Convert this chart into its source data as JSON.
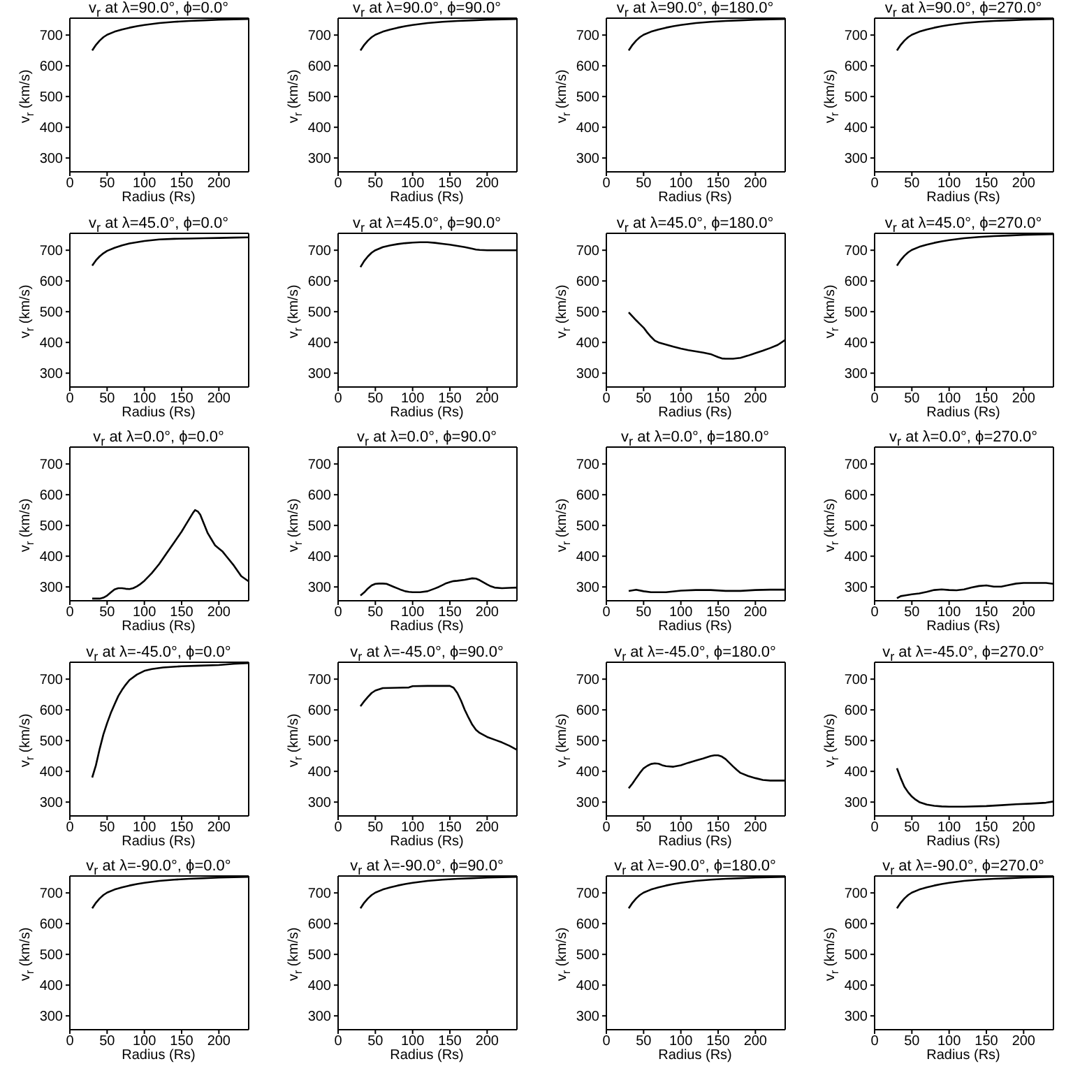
{
  "chart_data": [
    {
      "type": "line",
      "title": "v$_{r}$ at λ=90.0°, ϕ=0.0°",
      "xlabel": "Radius (Rs)",
      "ylabel": "v$_{r}$ (km/s)",
      "x": [
        30,
        35,
        40,
        45,
        50,
        60,
        70,
        80,
        90,
        100,
        120,
        140,
        160,
        180,
        200,
        220,
        240
      ],
      "series": [
        {
          "color": "#000000",
          "values": [
            650,
            668,
            682,
            693,
            701,
            711,
            718,
            724,
            729,
            733,
            739,
            743,
            746,
            748,
            750,
            751,
            752
          ]
        }
      ],
      "xlim": [
        0,
        240
      ],
      "ylim": [
        255,
        755
      ],
      "xticks": [
        0,
        50,
        100,
        150,
        200
      ],
      "yticks": [
        300,
        400,
        500,
        600,
        700
      ]
    },
    {
      "type": "line",
      "title": "v$_{r}$ at λ=90.0°, ϕ=90.0°",
      "xlabel": "Radius (Rs)",
      "ylabel": "v$_{r}$ (km/s)",
      "x": [
        30,
        35,
        40,
        45,
        50,
        60,
        70,
        80,
        90,
        100,
        120,
        140,
        160,
        180,
        200,
        220,
        240
      ],
      "series": [
        {
          "color": "#000000",
          "values": [
            650,
            668,
            682,
            693,
            701,
            711,
            718,
            724,
            729,
            733,
            739,
            743,
            746,
            748,
            750,
            751,
            752
          ]
        }
      ],
      "xlim": [
        0,
        240
      ],
      "ylim": [
        255,
        755
      ],
      "xticks": [
        0,
        50,
        100,
        150,
        200
      ],
      "yticks": [
        300,
        400,
        500,
        600,
        700
      ]
    },
    {
      "type": "line",
      "title": "v$_{r}$ at λ=90.0°, ϕ=180.0°",
      "xlabel": "Radius (Rs)",
      "ylabel": "v$_{r}$ (km/s)",
      "x": [
        30,
        35,
        40,
        45,
        50,
        60,
        70,
        80,
        90,
        100,
        120,
        140,
        160,
        180,
        200,
        220,
        240
      ],
      "series": [
        {
          "color": "#000000",
          "values": [
            650,
            668,
            682,
            693,
            701,
            711,
            718,
            724,
            729,
            733,
            739,
            743,
            746,
            748,
            750,
            751,
            752
          ]
        }
      ],
      "xlim": [
        0,
        240
      ],
      "ylim": [
        255,
        755
      ],
      "xticks": [
        0,
        50,
        100,
        150,
        200
      ],
      "yticks": [
        300,
        400,
        500,
        600,
        700
      ]
    },
    {
      "type": "line",
      "title": "v$_{r}$ at λ=90.0°, ϕ=270.0°",
      "xlabel": "Radius (Rs)",
      "ylabel": "v$_{r}$ (km/s)",
      "x": [
        30,
        35,
        40,
        45,
        50,
        60,
        70,
        80,
        90,
        100,
        120,
        140,
        160,
        180,
        200,
        220,
        240
      ],
      "series": [
        {
          "color": "#000000",
          "values": [
            650,
            668,
            682,
            693,
            701,
            711,
            718,
            724,
            729,
            733,
            739,
            743,
            746,
            748,
            750,
            751,
            752
          ]
        }
      ],
      "xlim": [
        0,
        240
      ],
      "ylim": [
        255,
        755
      ],
      "xticks": [
        0,
        50,
        100,
        150,
        200
      ],
      "yticks": [
        300,
        400,
        500,
        600,
        700
      ]
    },
    {
      "type": "line",
      "title": "v$_{r}$ at λ=45.0°, ϕ=0.0°",
      "xlabel": "Radius (Rs)",
      "ylabel": "v$_{r}$ (km/s)",
      "x": [
        30,
        35,
        40,
        45,
        50,
        60,
        70,
        80,
        90,
        100,
        120,
        140,
        160,
        180,
        200,
        220,
        240
      ],
      "series": [
        {
          "color": "#000000",
          "values": [
            650,
            667,
            680,
            690,
            698,
            708,
            716,
            722,
            726,
            730,
            735,
            737,
            738,
            739,
            740,
            741,
            742
          ]
        }
      ],
      "xlim": [
        0,
        240
      ],
      "ylim": [
        255,
        755
      ],
      "xticks": [
        0,
        50,
        100,
        150,
        200
      ],
      "yticks": [
        300,
        400,
        500,
        600,
        700
      ]
    },
    {
      "type": "line",
      "title": "v$_{r}$ at λ=45.0°, ϕ=90.0°",
      "xlabel": "Radius (Rs)",
      "ylabel": "v$_{r}$ (km/s)",
      "x": [
        30,
        35,
        40,
        45,
        50,
        60,
        70,
        80,
        90,
        100,
        110,
        120,
        130,
        140,
        150,
        160,
        170,
        180,
        185,
        190,
        200,
        220,
        240
      ],
      "series": [
        {
          "color": "#000000",
          "values": [
            645,
            665,
            680,
            692,
            700,
            710,
            716,
            720,
            723,
            725,
            726,
            726,
            724,
            721,
            718,
            714,
            710,
            705,
            702,
            701,
            700,
            700,
            700
          ]
        }
      ],
      "xlim": [
        0,
        240
      ],
      "ylim": [
        255,
        755
      ],
      "xticks": [
        0,
        50,
        100,
        150,
        200
      ],
      "yticks": [
        300,
        400,
        500,
        600,
        700
      ]
    },
    {
      "type": "line",
      "title": "v$_{r}$ at λ=45.0°, ϕ=180.0°",
      "xlabel": "Radius (Rs)",
      "ylabel": "v$_{r}$ (km/s)",
      "x": [
        30,
        35,
        40,
        45,
        50,
        55,
        60,
        65,
        70,
        80,
        90,
        100,
        110,
        120,
        130,
        140,
        150,
        155,
        160,
        170,
        180,
        190,
        200,
        210,
        220,
        230,
        240
      ],
      "series": [
        {
          "color": "#000000",
          "values": [
            498,
            485,
            472,
            460,
            448,
            432,
            418,
            406,
            400,
            393,
            386,
            380,
            375,
            371,
            367,
            362,
            352,
            348,
            347,
            347,
            350,
            357,
            365,
            373,
            382,
            392,
            408
          ]
        }
      ],
      "xlim": [
        0,
        240
      ],
      "ylim": [
        255,
        755
      ],
      "xticks": [
        0,
        50,
        100,
        150,
        200
      ],
      "yticks": [
        300,
        400,
        500,
        600,
        700
      ]
    },
    {
      "type": "line",
      "title": "v$_{r}$ at λ=45.0°, ϕ=270.0°",
      "xlabel": "Radius (Rs)",
      "ylabel": "v$_{r}$ (km/s)",
      "x": [
        30,
        35,
        40,
        45,
        50,
        60,
        70,
        80,
        90,
        100,
        120,
        140,
        160,
        180,
        200,
        220,
        240
      ],
      "series": [
        {
          "color": "#000000",
          "values": [
            650,
            668,
            682,
            693,
            701,
            711,
            718,
            724,
            729,
            733,
            739,
            743,
            746,
            748,
            750,
            751,
            752
          ]
        }
      ],
      "xlim": [
        0,
        240
      ],
      "ylim": [
        255,
        755
      ],
      "xticks": [
        0,
        50,
        100,
        150,
        200
      ],
      "yticks": [
        300,
        400,
        500,
        600,
        700
      ]
    },
    {
      "type": "line",
      "title": "v$_{r}$ at λ=0.0°, ϕ=0.0°",
      "xlabel": "Radius (Rs)",
      "ylabel": "v$_{r}$ (km/s)",
      "x": [
        30,
        40,
        45,
        50,
        55,
        60,
        65,
        70,
        75,
        80,
        85,
        90,
        95,
        100,
        110,
        120,
        130,
        140,
        150,
        155,
        160,
        165,
        168,
        172,
        175,
        180,
        185,
        190,
        195,
        200,
        205,
        210,
        220,
        230,
        240
      ],
      "series": [
        {
          "color": "#000000",
          "values": [
            262,
            262,
            265,
            272,
            282,
            292,
            296,
            296,
            294,
            293,
            296,
            302,
            310,
            320,
            345,
            375,
            410,
            445,
            480,
            500,
            520,
            540,
            550,
            545,
            535,
            505,
            475,
            455,
            435,
            425,
            415,
            400,
            370,
            335,
            318
          ]
        }
      ],
      "xlim": [
        0,
        240
      ],
      "ylim": [
        255,
        755
      ],
      "xticks": [
        0,
        50,
        100,
        150,
        200
      ],
      "yticks": [
        300,
        400,
        500,
        600,
        700
      ]
    },
    {
      "type": "line",
      "title": "v$_{r}$ at λ=0.0°, ϕ=90.0°",
      "xlabel": "Radius (Rs)",
      "ylabel": "v$_{r}$ (km/s)",
      "x": [
        30,
        35,
        40,
        45,
        50,
        55,
        60,
        65,
        70,
        75,
        80,
        85,
        90,
        95,
        100,
        110,
        120,
        130,
        135,
        140,
        145,
        150,
        155,
        160,
        170,
        180,
        185,
        190,
        195,
        200,
        205,
        210,
        220,
        230,
        240
      ],
      "series": [
        {
          "color": "#000000",
          "values": [
            272,
            282,
            295,
            305,
            310,
            311,
            311,
            310,
            305,
            300,
            295,
            290,
            286,
            284,
            283,
            283,
            286,
            295,
            300,
            306,
            312,
            316,
            319,
            320,
            323,
            328,
            327,
            322,
            315,
            308,
            302,
            298,
            296,
            297,
            298
          ]
        }
      ],
      "xlim": [
        0,
        240
      ],
      "ylim": [
        255,
        755
      ],
      "xticks": [
        0,
        50,
        100,
        150,
        200
      ],
      "yticks": [
        300,
        400,
        500,
        600,
        700
      ]
    },
    {
      "type": "line",
      "title": "v$_{r}$ at λ=0.0°, ϕ=180.0°",
      "xlabel": "Radius (Rs)",
      "ylabel": "v$_{r}$ (km/s)",
      "x": [
        30,
        40,
        50,
        60,
        80,
        100,
        120,
        140,
        160,
        180,
        200,
        220,
        240
      ],
      "series": [
        {
          "color": "#000000",
          "values": [
            287,
            291,
            286,
            283,
            283,
            288,
            290,
            290,
            287,
            287,
            290,
            291,
            291
          ]
        }
      ],
      "xlim": [
        0,
        240
      ],
      "ylim": [
        255,
        755
      ],
      "xticks": [
        0,
        50,
        100,
        150,
        200
      ],
      "yticks": [
        300,
        400,
        500,
        600,
        700
      ]
    },
    {
      "type": "line",
      "title": "v$_{r}$ at λ=0.0°, ϕ=270.0°",
      "xlabel": "Radius (Rs)",
      "ylabel": "v$_{r}$ (km/s)",
      "x": [
        30,
        35,
        40,
        50,
        60,
        70,
        80,
        90,
        100,
        110,
        120,
        130,
        140,
        150,
        160,
        170,
        180,
        190,
        200,
        210,
        220,
        230,
        240
      ],
      "series": [
        {
          "color": "#000000",
          "values": [
            263,
            270,
            272,
            276,
            279,
            284,
            290,
            292,
            290,
            289,
            292,
            298,
            303,
            305,
            301,
            301,
            306,
            311,
            313,
            313,
            313,
            313,
            310
          ]
        }
      ],
      "xlim": [
        0,
        240
      ],
      "ylim": [
        255,
        755
      ],
      "xticks": [
        0,
        50,
        100,
        150,
        200
      ],
      "yticks": [
        300,
        400,
        500,
        600,
        700
      ]
    },
    {
      "type": "line",
      "title": "v$_{r}$ at λ=-45.0°, ϕ=0.0°",
      "xlabel": "Radius (Rs)",
      "ylabel": "v$_{r}$ (km/s)",
      "x": [
        30,
        35,
        40,
        45,
        50,
        55,
        60,
        65,
        70,
        75,
        80,
        90,
        100,
        110,
        125,
        150,
        175,
        200,
        220,
        240
      ],
      "series": [
        {
          "color": "#000000",
          "values": [
            380,
            420,
            473,
            520,
            557,
            590,
            618,
            645,
            665,
            682,
            697,
            715,
            727,
            733,
            738,
            742,
            744,
            746,
            750,
            752
          ]
        }
      ],
      "xlim": [
        0,
        240
      ],
      "ylim": [
        255,
        755
      ],
      "xticks": [
        0,
        50,
        100,
        150,
        200
      ],
      "yticks": [
        300,
        400,
        500,
        600,
        700
      ]
    },
    {
      "type": "line",
      "title": "v$_{r}$ at λ=-45.0°, ϕ=90.0°",
      "xlabel": "Radius (Rs)",
      "ylabel": "v$_{r}$ (km/s)",
      "x": [
        30,
        35,
        40,
        45,
        50,
        60,
        80,
        95,
        100,
        120,
        140,
        150,
        155,
        160,
        165,
        170,
        175,
        180,
        185,
        190,
        200,
        210,
        220,
        230,
        240
      ],
      "series": [
        {
          "color": "#000000",
          "values": [
            612,
            628,
            642,
            655,
            663,
            671,
            672,
            673,
            677,
            678,
            678,
            678,
            672,
            655,
            630,
            600,
            575,
            552,
            535,
            525,
            512,
            503,
            494,
            483,
            470
          ]
        }
      ],
      "xlim": [
        0,
        240
      ],
      "ylim": [
        255,
        755
      ],
      "xticks": [
        0,
        50,
        100,
        150,
        200
      ],
      "yticks": [
        300,
        400,
        500,
        600,
        700
      ]
    },
    {
      "type": "line",
      "title": "v$_{r}$ at λ=-45.0°, ϕ=180.0°",
      "xlabel": "Radius (Rs)",
      "ylabel": "v$_{r}$ (km/s)",
      "x": [
        30,
        35,
        40,
        45,
        50,
        55,
        60,
        65,
        70,
        75,
        80,
        90,
        100,
        110,
        120,
        130,
        140,
        145,
        150,
        155,
        160,
        165,
        170,
        175,
        180,
        190,
        200,
        210,
        220,
        230,
        240
      ],
      "series": [
        {
          "color": "#000000",
          "values": [
            345,
            360,
            378,
            395,
            410,
            418,
            424,
            426,
            425,
            420,
            417,
            415,
            420,
            428,
            435,
            442,
            450,
            452,
            452,
            448,
            440,
            428,
            416,
            405,
            395,
            385,
            378,
            372,
            370,
            370,
            370
          ]
        }
      ],
      "xlim": [
        0,
        240
      ],
      "ylim": [
        255,
        755
      ],
      "xticks": [
        0,
        50,
        100,
        150,
        200
      ],
      "yticks": [
        300,
        400,
        500,
        600,
        700
      ]
    },
    {
      "type": "line",
      "title": "v$_{r}$ at λ=-45.0°, ϕ=270.0°",
      "xlabel": "Radius (Rs)",
      "ylabel": "v$_{r}$ (km/s)",
      "x": [
        30,
        35,
        40,
        45,
        50,
        55,
        60,
        70,
        80,
        90,
        100,
        120,
        150,
        170,
        190,
        210,
        230,
        240
      ],
      "series": [
        {
          "color": "#000000",
          "values": [
            410,
            378,
            350,
            332,
            318,
            308,
            300,
            292,
            288,
            286,
            285,
            285,
            287,
            290,
            293,
            295,
            298,
            302
          ]
        }
      ],
      "xlim": [
        0,
        240
      ],
      "ylim": [
        255,
        755
      ],
      "xticks": [
        0,
        50,
        100,
        150,
        200
      ],
      "yticks": [
        300,
        400,
        500,
        600,
        700
      ]
    },
    {
      "type": "line",
      "title": "v$_{r}$ at λ=-90.0°, ϕ=0.0°",
      "xlabel": "Radius (Rs)",
      "ylabel": "v$_{r}$ (km/s)",
      "x": [
        30,
        35,
        40,
        45,
        50,
        60,
        70,
        80,
        90,
        100,
        120,
        140,
        160,
        180,
        200,
        220,
        240
      ],
      "series": [
        {
          "color": "#000000",
          "values": [
            650,
            668,
            682,
            693,
            701,
            711,
            718,
            724,
            729,
            733,
            739,
            743,
            746,
            748,
            750,
            751,
            752
          ]
        }
      ],
      "xlim": [
        0,
        240
      ],
      "ylim": [
        255,
        755
      ],
      "xticks": [
        0,
        50,
        100,
        150,
        200
      ],
      "yticks": [
        300,
        400,
        500,
        600,
        700
      ]
    },
    {
      "type": "line",
      "title": "v$_{r}$ at λ=-90.0°, ϕ=90.0°",
      "xlabel": "Radius (Rs)",
      "ylabel": "v$_{r}$ (km/s)",
      "x": [
        30,
        35,
        40,
        45,
        50,
        60,
        70,
        80,
        90,
        100,
        120,
        140,
        160,
        180,
        200,
        220,
        240
      ],
      "series": [
        {
          "color": "#000000",
          "values": [
            650,
            668,
            682,
            693,
            701,
            711,
            718,
            724,
            729,
            733,
            739,
            743,
            746,
            748,
            750,
            751,
            752
          ]
        }
      ],
      "xlim": [
        0,
        240
      ],
      "ylim": [
        255,
        755
      ],
      "xticks": [
        0,
        50,
        100,
        150,
        200
      ],
      "yticks": [
        300,
        400,
        500,
        600,
        700
      ]
    },
    {
      "type": "line",
      "title": "v$_{r}$ at λ=-90.0°, ϕ=180.0°",
      "xlabel": "Radius (Rs)",
      "ylabel": "v$_{r}$ (km/s)",
      "x": [
        30,
        35,
        40,
        45,
        50,
        60,
        70,
        80,
        90,
        100,
        120,
        140,
        160,
        180,
        200,
        220,
        240
      ],
      "series": [
        {
          "color": "#000000",
          "values": [
            650,
            668,
            682,
            693,
            701,
            711,
            718,
            724,
            729,
            733,
            739,
            743,
            746,
            748,
            750,
            751,
            752
          ]
        }
      ],
      "xlim": [
        0,
        240
      ],
      "ylim": [
        255,
        755
      ],
      "xticks": [
        0,
        50,
        100,
        150,
        200
      ],
      "yticks": [
        300,
        400,
        500,
        600,
        700
      ]
    },
    {
      "type": "line",
      "title": "v$_{r}$ at λ=-90.0°, ϕ=270.0°",
      "xlabel": "Radius (Rs)",
      "ylabel": "v$_{r}$ (km/s)",
      "x": [
        30,
        35,
        40,
        45,
        50,
        60,
        70,
        80,
        90,
        100,
        120,
        140,
        160,
        180,
        200,
        220,
        240
      ],
      "series": [
        {
          "color": "#000000",
          "values": [
            650,
            668,
            682,
            693,
            701,
            711,
            718,
            724,
            729,
            733,
            739,
            743,
            746,
            748,
            750,
            751,
            752
          ]
        }
      ],
      "xlim": [
        0,
        240
      ],
      "ylim": [
        255,
        755
      ],
      "xticks": [
        0,
        50,
        100,
        150,
        200
      ],
      "yticks": [
        300,
        400,
        500,
        600,
        700
      ]
    }
  ]
}
